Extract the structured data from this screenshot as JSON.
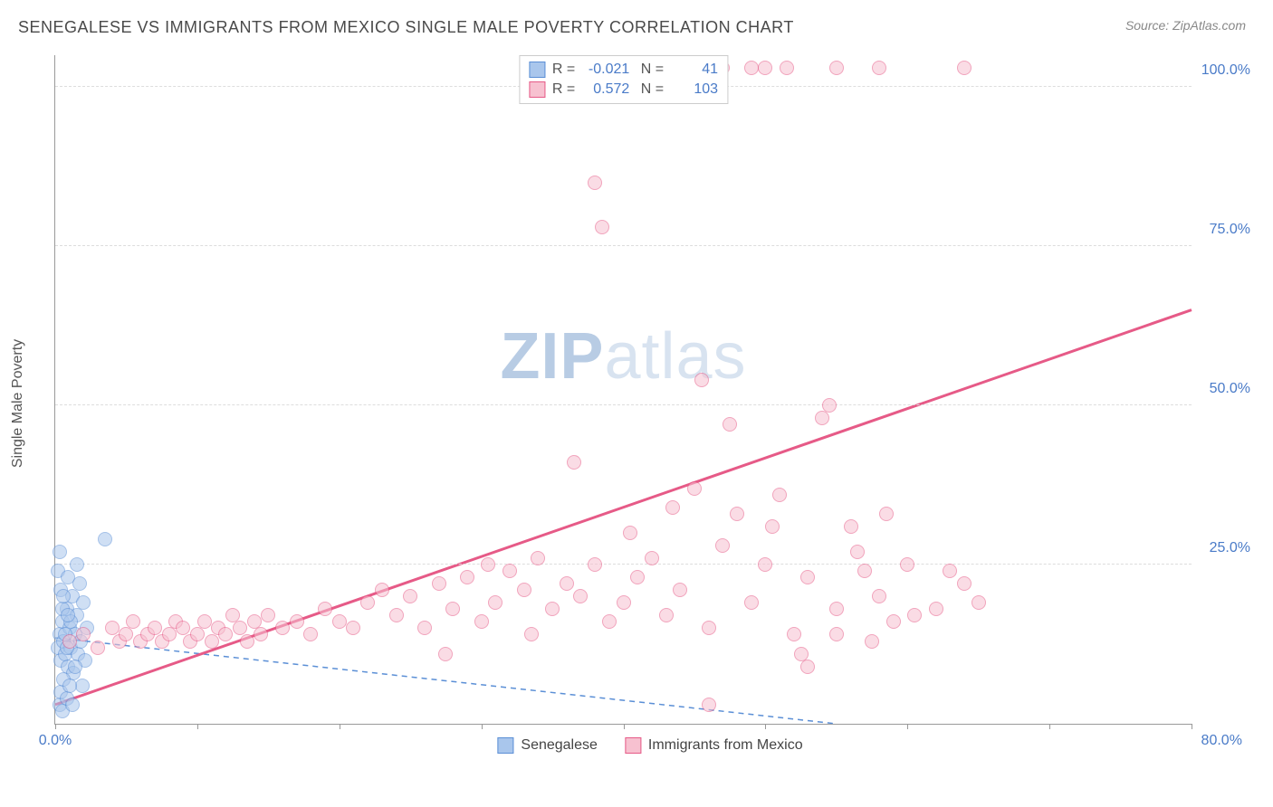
{
  "title": "SENEGALESE VS IMMIGRANTS FROM MEXICO SINGLE MALE POVERTY CORRELATION CHART",
  "source": "Source: ZipAtlas.com",
  "ylabel": "Single Male Poverty",
  "watermark_a": "ZIP",
  "watermark_b": "atlas",
  "chart": {
    "xlim": [
      0,
      80
    ],
    "ylim": [
      0,
      105
    ],
    "ytick_values": [
      25,
      50,
      75,
      100
    ],
    "ytick_labels": [
      "25.0%",
      "50.0%",
      "75.0%",
      "100.0%"
    ],
    "xtick_values": [
      0,
      10,
      20,
      30,
      40,
      50,
      60,
      70,
      80
    ],
    "xtick_label_min": "0.0%",
    "xtick_label_max": "80.0%",
    "grid_color": "#dddddd",
    "axis_color": "#999999",
    "background_color": "#ffffff",
    "point_radius": 8,
    "point_opacity": 0.55,
    "series": [
      {
        "name": "Senegalese",
        "fill": "#a9c6ec",
        "stroke": "#5b8fd6",
        "R": "-0.021",
        "N": "41",
        "trend": {
          "x1": 0,
          "y1": 13.5,
          "x2": 55,
          "y2": 0,
          "dash": "6,5",
          "width": 1.5
        },
        "points": [
          [
            0.2,
            12
          ],
          [
            0.3,
            14
          ],
          [
            0.4,
            10
          ],
          [
            0.5,
            16
          ],
          [
            0.6,
            13
          ],
          [
            0.7,
            11
          ],
          [
            0.8,
            18
          ],
          [
            0.9,
            9
          ],
          [
            1.0,
            15
          ],
          [
            1.1,
            12
          ],
          [
            1.2,
            20
          ],
          [
            1.3,
            8
          ],
          [
            1.4,
            14
          ],
          [
            1.5,
            17
          ],
          [
            1.6,
            11
          ],
          [
            1.7,
            22
          ],
          [
            1.8,
            13
          ],
          [
            1.9,
            6
          ],
          [
            2.0,
            19
          ],
          [
            2.1,
            10
          ],
          [
            2.2,
            15
          ],
          [
            0.3,
            3
          ],
          [
            0.5,
            2
          ],
          [
            0.4,
            5
          ],
          [
            0.6,
            7
          ],
          [
            0.8,
            4
          ],
          [
            1.0,
            6
          ],
          [
            1.2,
            3
          ],
          [
            0.2,
            24
          ],
          [
            0.4,
            21
          ],
          [
            0.9,
            23
          ],
          [
            1.5,
            25
          ],
          [
            0.3,
            27
          ],
          [
            3.5,
            29
          ],
          [
            0.7,
            14
          ],
          [
            0.5,
            18
          ],
          [
            0.8,
            12
          ],
          [
            1.1,
            16
          ],
          [
            1.4,
            9
          ],
          [
            0.6,
            20
          ],
          [
            0.9,
            17
          ]
        ]
      },
      {
        "name": "Immigrants from Mexico",
        "fill": "#f7c1d0",
        "stroke": "#e65a87",
        "R": "0.572",
        "N": "103",
        "trend": {
          "x1": 0,
          "y1": 3,
          "x2": 80,
          "y2": 65,
          "dash": "",
          "width": 3
        },
        "points": [
          [
            1,
            13
          ],
          [
            2,
            14
          ],
          [
            3,
            12
          ],
          [
            4,
            15
          ],
          [
            4.5,
            13
          ],
          [
            5,
            14
          ],
          [
            5.5,
            16
          ],
          [
            6,
            13
          ],
          [
            6.5,
            14
          ],
          [
            7,
            15
          ],
          [
            7.5,
            13
          ],
          [
            8,
            14
          ],
          [
            8.5,
            16
          ],
          [
            9,
            15
          ],
          [
            9.5,
            13
          ],
          [
            10,
            14
          ],
          [
            10.5,
            16
          ],
          [
            11,
            13
          ],
          [
            11.5,
            15
          ],
          [
            12,
            14
          ],
          [
            12.5,
            17
          ],
          [
            13,
            15
          ],
          [
            13.5,
            13
          ],
          [
            14,
            16
          ],
          [
            14.5,
            14
          ],
          [
            15,
            17
          ],
          [
            16,
            15
          ],
          [
            17,
            16
          ],
          [
            18,
            14
          ],
          [
            19,
            18
          ],
          [
            20,
            16
          ],
          [
            21,
            15
          ],
          [
            22,
            19
          ],
          [
            23,
            21
          ],
          [
            24,
            17
          ],
          [
            25,
            20
          ],
          [
            26,
            15
          ],
          [
            27,
            22
          ],
          [
            27.5,
            11
          ],
          [
            28,
            18
          ],
          [
            29,
            23
          ],
          [
            30,
            16
          ],
          [
            30.5,
            25
          ],
          [
            31,
            19
          ],
          [
            32,
            24
          ],
          [
            33,
            21
          ],
          [
            33.5,
            14
          ],
          [
            34,
            26
          ],
          [
            35,
            18
          ],
          [
            36,
            22
          ],
          [
            36.5,
            41
          ],
          [
            37,
            20
          ],
          [
            38,
            25
          ],
          [
            38.5,
            78
          ],
          [
            38,
            85
          ],
          [
            39,
            16
          ],
          [
            40,
            19
          ],
          [
            40.5,
            30
          ],
          [
            41,
            23
          ],
          [
            42,
            26
          ],
          [
            43,
            17
          ],
          [
            43.5,
            34
          ],
          [
            44,
            21
          ],
          [
            45,
            37
          ],
          [
            45.5,
            54
          ],
          [
            46,
            15
          ],
          [
            47,
            28
          ],
          [
            47.5,
            47
          ],
          [
            48,
            33
          ],
          [
            49,
            19
          ],
          [
            50,
            25
          ],
          [
            50.5,
            31
          ],
          [
            51,
            36
          ],
          [
            52,
            14
          ],
          [
            52.5,
            11
          ],
          [
            53,
            23
          ],
          [
            54,
            48
          ],
          [
            55,
            18
          ],
          [
            56,
            31
          ],
          [
            57,
            24
          ],
          [
            57.5,
            13
          ],
          [
            58,
            20
          ],
          [
            59,
            16
          ],
          [
            60,
            25
          ],
          [
            62,
            18
          ],
          [
            64,
            22
          ],
          [
            44,
            103
          ],
          [
            47,
            103
          ],
          [
            49,
            103
          ],
          [
            50,
            103
          ],
          [
            51.5,
            103
          ],
          [
            55,
            103
          ],
          [
            58,
            103
          ],
          [
            64,
            103
          ],
          [
            46,
            3
          ],
          [
            53,
            9
          ],
          [
            54.5,
            50
          ],
          [
            55,
            14
          ],
          [
            56.5,
            27
          ],
          [
            58.5,
            33
          ],
          [
            60.5,
            17
          ],
          [
            63,
            24
          ],
          [
            65,
            19
          ]
        ]
      }
    ]
  },
  "legend_bottom": [
    {
      "label": "Senegalese",
      "fill": "#a9c6ec",
      "stroke": "#5b8fd6"
    },
    {
      "label": "Immigrants from Mexico",
      "fill": "#f7c1d0",
      "stroke": "#e65a87"
    }
  ]
}
